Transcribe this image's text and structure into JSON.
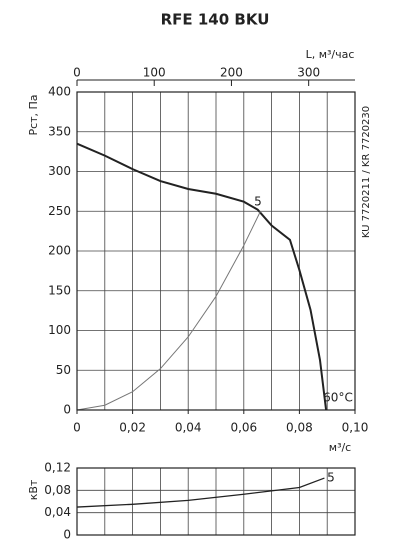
{
  "chart_data": [
    {
      "type": "line",
      "title": "RFE 140 BKU",
      "ylabel": "Рст, Па",
      "xlabel": "м³/с",
      "x2label": "L, м³/час",
      "side_label": "KU 7720211 / KR 7720230",
      "xlim": [
        0,
        0.1
      ],
      "xticks": [
        0,
        {
          "value": 0.02,
          "label": "0,02"
        },
        {
          "value": 0.04,
          "label": "0,04"
        },
        {
          "value": 0.06,
          "label": "0,06"
        },
        {
          "value": 0.08,
          "label": "0,08"
        },
        {
          "value": 0.1,
          "label": "0,10"
        }
      ],
      "xgrid": [
        0,
        0.01,
        0.02,
        0.03,
        0.04,
        0.05,
        0.06,
        0.07,
        0.08,
        0.09,
        0.1
      ],
      "x2lim": [
        0,
        360
      ],
      "x2ticks": [
        0,
        100,
        200,
        300
      ],
      "ylim": [
        0,
        400
      ],
      "yticks": [
        0,
        50,
        100,
        150,
        200,
        250,
        300,
        350,
        400
      ],
      "series": [
        {
          "color": "#222",
          "width": 2,
          "x": [
            0,
            0.01,
            0.02,
            0.03,
            0.04,
            0.05,
            0.06,
            0.065,
            0.07,
            0.0766,
            0.08,
            0.084,
            0.0874,
            0.0896
          ],
          "values": [
            335,
            320,
            303,
            288,
            278,
            272,
            262,
            252,
            232,
            214,
            176,
            126,
            63,
            0
          ]
        },
        {
          "color": "#777",
          "width": 1,
          "x": [
            0,
            0.01,
            0.02,
            0.03,
            0.04,
            0.05,
            0.06,
            0.066
          ],
          "values": [
            0,
            6,
            23,
            52,
            92,
            143,
            207,
            250
          ]
        }
      ],
      "annotations": [
        "5",
        "60°C"
      ]
    },
    {
      "type": "line",
      "ylabel": "кВт",
      "xlim": [
        0,
        0.1
      ],
      "xgrid": [
        0,
        0.01,
        0.02,
        0.03,
        0.04,
        0.05,
        0.06,
        0.07,
        0.08,
        0.09,
        0.1
      ],
      "ylim": [
        0,
        0.12
      ],
      "yticks": [
        0,
        {
          "value": 0.04,
          "label": "0,04"
        },
        {
          "value": 0.08,
          "label": "0,08"
        },
        {
          "value": 0.12,
          "label": "0,12"
        }
      ],
      "series": [
        {
          "color": "#222",
          "width": 1.3,
          "x": [
            0,
            0.02,
            0.04,
            0.06,
            0.08,
            0.089
          ],
          "values": [
            0.05,
            0.055,
            0.062,
            0.073,
            0.085,
            0.102
          ]
        }
      ],
      "annotations": [
        "5"
      ]
    }
  ]
}
